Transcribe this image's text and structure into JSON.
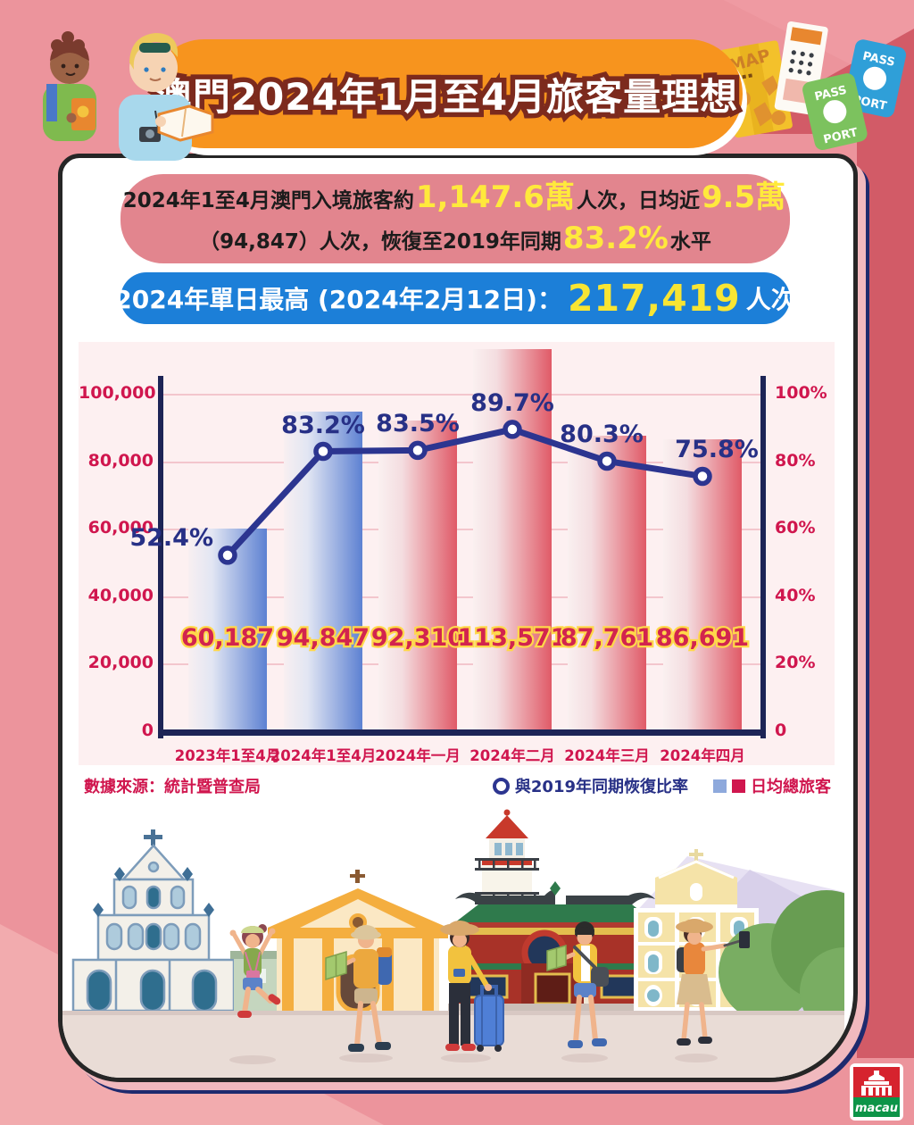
{
  "colors": {
    "page_bg": "#ec949c",
    "banner": "#f7941e",
    "summary_box": "#e2858e",
    "pill_blue": "#1c7fd8",
    "highlight_yellow": "#ffe93c",
    "crimson": "#d0164e",
    "navy": "#2c3590",
    "bar_blue": "#5d81d2",
    "bar_red": "#e05a67",
    "panel_bg": "#fdf0f1"
  },
  "header": {
    "title": "澳門2024年1月至4月旅客量理想"
  },
  "summary": {
    "seg1": "2024年1至4月澳門入境旅客約",
    "num1": "1,147.6萬",
    "seg2": "人次，日均近",
    "num2": "9.5萬",
    "seg3": "（94,847）人次，恢復至2019年同期",
    "num3": "83.2%",
    "seg4": "水平"
  },
  "daily_max": {
    "prefix": "2024年單日最高 (2024年2月12日)：",
    "value": "217,419",
    "suffix": "人次"
  },
  "chart_data": {
    "type": "bar",
    "title": "",
    "categories": [
      "2023年1至4月",
      "2024年1至4月",
      "2024年一月",
      "2024年二月",
      "2024年三月",
      "2024年四月"
    ],
    "series": [
      {
        "name": "日均總旅客",
        "chart": "bar",
        "values": [
          60187,
          94847,
          92310,
          113571,
          87761,
          86691
        ],
        "labels": [
          "60,187",
          "94,847",
          "92,310",
          "113,571",
          "87,761",
          "86,691"
        ],
        "palette": [
          "blue",
          "blue",
          "red",
          "red",
          "red",
          "red"
        ]
      },
      {
        "name": "與2019年同期恢復比率",
        "chart": "line",
        "values": [
          52.4,
          83.2,
          83.5,
          89.7,
          80.3,
          75.8
        ],
        "labels": [
          "52.4%",
          "83.2%",
          "83.5%",
          "89.7%",
          "80.3%",
          "75.8%"
        ]
      }
    ],
    "left_axis": {
      "max": 100000,
      "tick_labels": [
        "100,000",
        "80,000",
        "60,000",
        "40,000",
        "20,000",
        "0"
      ]
    },
    "right_axis": {
      "max": 100,
      "tick_labels": [
        "100%",
        "80%",
        "60%",
        "40%",
        "20%",
        "0"
      ]
    },
    "grid": true,
    "legend_position": "bottom-right"
  },
  "footer": {
    "source": "數據來源：統計暨普查局",
    "legend_line": "與2019年同期恢復比率",
    "legend_bars": "日均總旅客"
  },
  "decor": {
    "map_label": "MAP",
    "passport_line1": "PASS",
    "passport_line2": "PORT",
    "logo_text": "macau"
  }
}
